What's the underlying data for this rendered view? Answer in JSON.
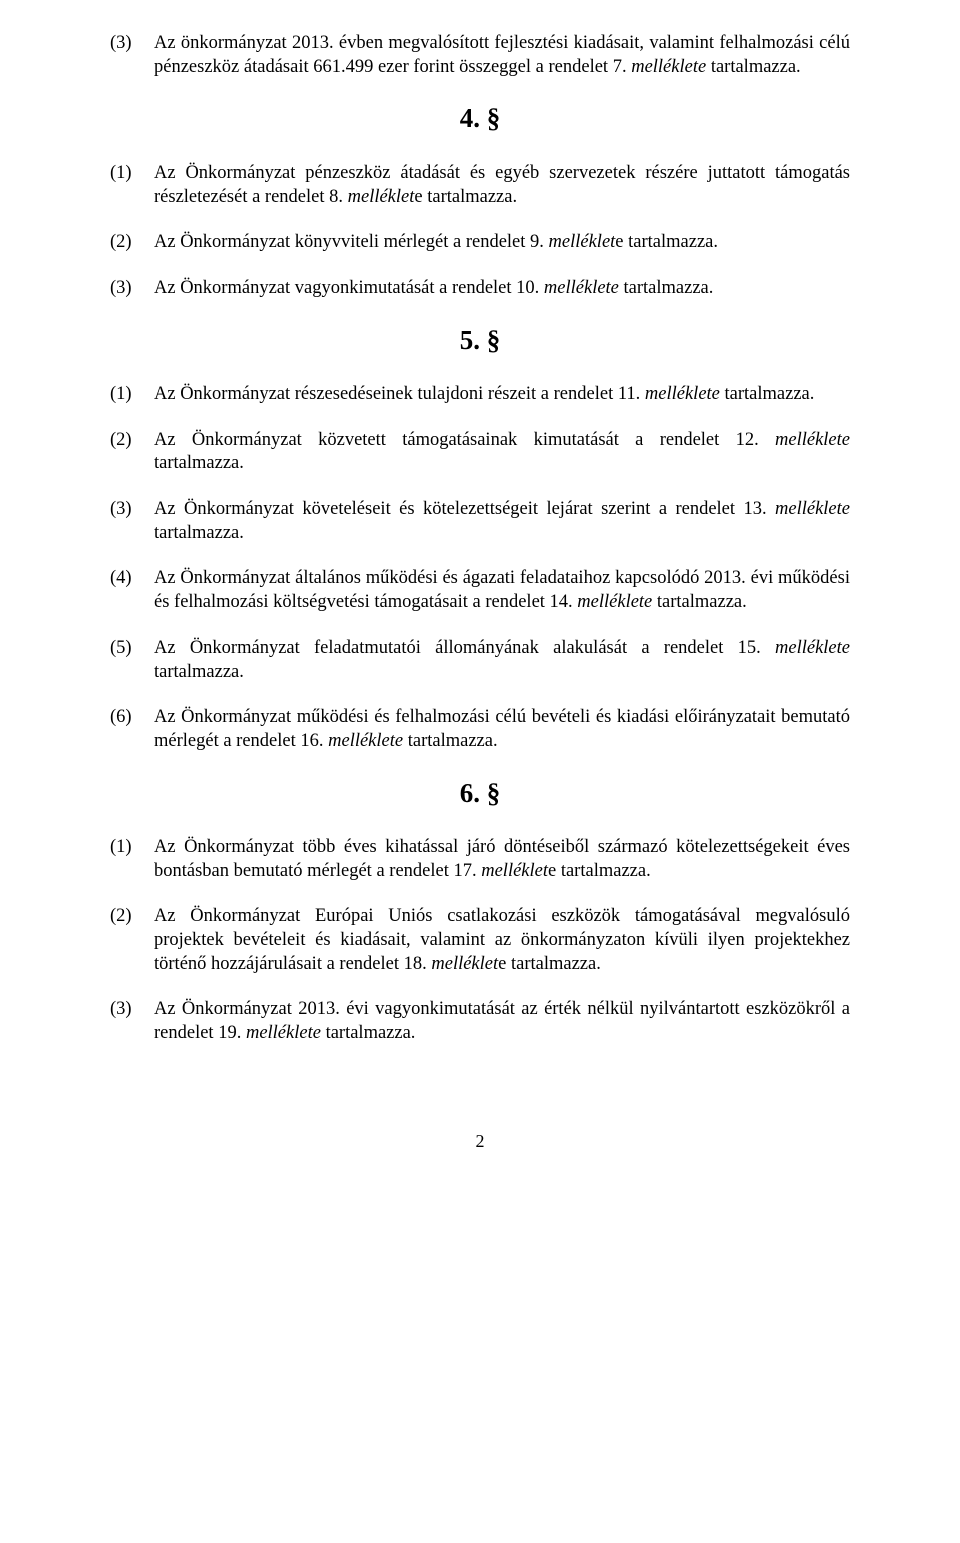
{
  "p_3_3": {
    "num": "(3)",
    "t1": "Az önkormányzat 2013. évben megvalósított fejlesztési kiadásait, valamint felhalmozási célú pénzeszköz átadásait 661.499 ezer forint összeggel a rendelet 7. ",
    "i1": "melléklete",
    "t2": " tartalmazza."
  },
  "s4": "4. §",
  "p_4_1": {
    "num": "(1)",
    "t1": "Az Önkormányzat pénzeszköz átadását és egyéb szervezetek részére juttatott támogatás részletezését a rendelet 8. ",
    "i1": "melléklet",
    "t2": "e tartalmazza."
  },
  "p_4_2": {
    "num": "(2)",
    "t1": "Az Önkormányzat könyvviteli mérlegét a rendelet 9. ",
    "i1": "melléklet",
    "t2": "e tartalmazza."
  },
  "p_4_3": {
    "num": "(3)",
    "t1": "Az Önkormányzat vagyonkimutatását a rendelet 10. ",
    "i1": "melléklete",
    "t2": " tartalmazza."
  },
  "s5": "5. §",
  "p_5_1": {
    "num": "(1)",
    "t1": "Az Önkormányzat részesedéseinek tulajdoni részeit a rendelet 11. ",
    "i1": "melléklete",
    "t2": " tartalmazza."
  },
  "p_5_2": {
    "num": "(2)",
    "t1": "Az Önkormányzat közvetett támogatásainak kimutatását a rendelet 12. ",
    "i1": "melléklete",
    "t2": " tartalmazza."
  },
  "p_5_3": {
    "num": "(3)",
    "t1": "Az Önkormányzat követeléseit és kötelezettségeit lejárat szerint a rendelet 13. ",
    "i1": "melléklete",
    "t2": " tartalmazza."
  },
  "p_5_4": {
    "num": "(4)",
    "t1": "Az Önkormányzat általános működési és ágazati feladataihoz kapcsolódó 2013. évi működési és felhalmozási költségvetési támogatásait a rendelet 14. ",
    "i1": "melléklete",
    "t2": " tartalmazza."
  },
  "p_5_5": {
    "num": "(5)",
    "t1": "Az Önkormányzat feladatmutatói állományának alakulását a rendelet 15. ",
    "i1": "melléklete",
    "t2": " tartalmazza."
  },
  "p_5_6": {
    "num": "(6)",
    "t1": "Az Önkormányzat működési és felhalmozási célú bevételi és kiadási előirányzatait bemutató mérlegét a rendelet 16. ",
    "i1": "melléklete",
    "t2": " tartalmazza."
  },
  "s6": "6. §",
  "p_6_1": {
    "num": "(1)",
    "t1": "Az Önkormányzat több éves kihatással járó döntéseiből származó kötelezettségekeit éves bontásban bemutató mérlegét a rendelet 17. ",
    "i1": "melléklet",
    "t2": "e tartalmazza."
  },
  "p_6_2": {
    "num": "(2)",
    "t1": "Az Önkormányzat Európai Uniós csatlakozási eszközök támogatásával megvalósuló projektek bevételeit és kiadásait, valamint az önkormányzaton kívüli ilyen projektekhez történő hozzájárulásait a rendelet 18. ",
    "i1": "melléklet",
    "t2": "e tartalmazza."
  },
  "p_6_3": {
    "num": "(3)",
    "t1": "Az Önkormányzat 2013. évi vagyonkimutatását az érték nélkül nyilvántartott eszközökről a rendelet 19. ",
    "i1": "melléklete",
    "t2": " tartalmazza."
  },
  "pagenum": "2"
}
